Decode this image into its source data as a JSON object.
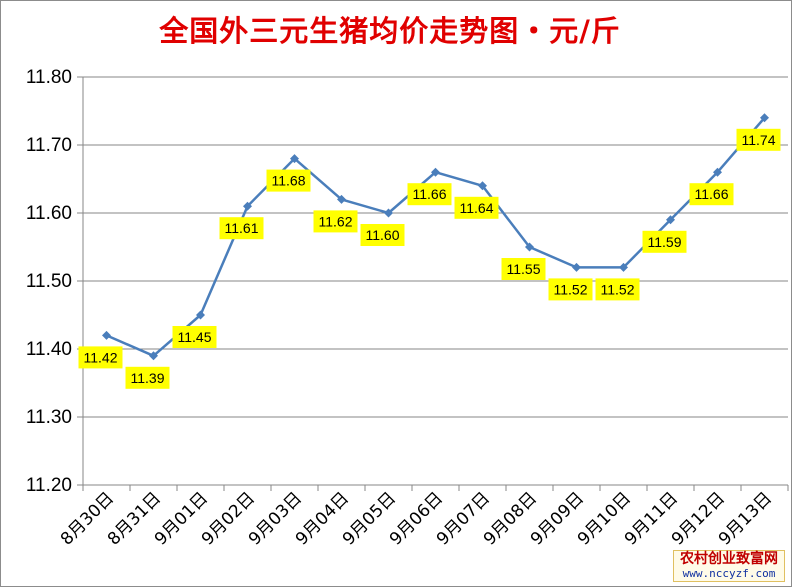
{
  "chart_data": {
    "type": "line",
    "title": "全国外三元生猪均价走势图・元/斤",
    "xlabel": "",
    "ylabel": "",
    "ylim": [
      11.2,
      11.8
    ],
    "yticks": [
      "11.20",
      "11.30",
      "11.40",
      "11.50",
      "11.60",
      "11.70",
      "11.80"
    ],
    "grid": true,
    "categories": [
      "8月30日",
      "8月31日",
      "9月01日",
      "9月02日",
      "9月03日",
      "9月04日",
      "9月05日",
      "9月06日",
      "9月07日",
      "9月08日",
      "9月09日",
      "9月10日",
      "9月11日",
      "9月12日",
      "9月13日"
    ],
    "series": [
      {
        "values": [
          11.42,
          11.39,
          11.45,
          11.61,
          11.68,
          11.62,
          11.6,
          11.66,
          11.64,
          11.55,
          11.52,
          11.52,
          11.59,
          11.66,
          11.74
        ],
        "labels": [
          "11.42",
          "11.39",
          "11.45",
          "11.61",
          "11.68",
          "11.62",
          "11.60",
          "11.66",
          "11.64",
          "11.55",
          "11.52",
          "11.52",
          "11.59",
          "11.66",
          "11.74"
        ],
        "color": "#4a7ebb"
      }
    ],
    "label_background": "#ffff00"
  },
  "watermark": {
    "line1": "农村创业致富网",
    "line2": "www.nccyzf.com"
  }
}
